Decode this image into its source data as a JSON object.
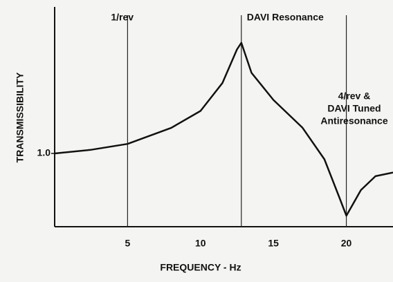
{
  "chart_data": {
    "type": "line",
    "xlabel": "FREQUENCY - Hz",
    "ylabel": "TRANSMISSIBILITY",
    "x": [
      0,
      2.5,
      5,
      8,
      10,
      11.5,
      12.5,
      12.8,
      13.5,
      15,
      17,
      18.5,
      19.5,
      20,
      21,
      22,
      23.2
    ],
    "series": [
      {
        "color": "#111111",
        "values": [
          1.0,
          1.05,
          1.13,
          1.35,
          1.58,
          1.96,
          2.42,
          2.51,
          2.1,
          1.73,
          1.35,
          0.92,
          0.41,
          0.15,
          0.5,
          0.69,
          0.74
        ]
      }
    ],
    "xlim": [
      0,
      23.2
    ],
    "ylim": [
      0,
      3
    ],
    "xticks": [
      5,
      10,
      15,
      20
    ],
    "yticks": [
      {
        "value": 1,
        "label": "1.0"
      }
    ],
    "markers": [
      {
        "x": 5,
        "lines": [
          "1/rev"
        ]
      },
      {
        "x": 12.8,
        "lines": [
          "DAVI Resonance"
        ]
      },
      {
        "x": 20,
        "lines": [
          "4/rev &",
          "DAVI Tuned",
          "Antiresonance"
        ]
      }
    ]
  }
}
